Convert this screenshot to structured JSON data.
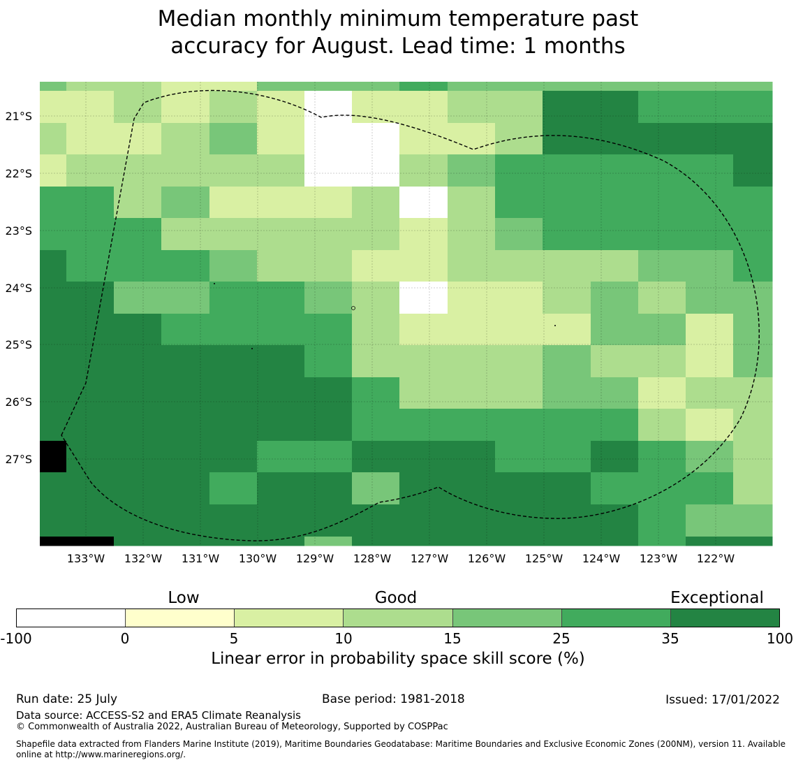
{
  "title": {
    "line1": "Median monthly minimum temperature past",
    "line2": "accuracy for August. Lead time: 1 months"
  },
  "map": {
    "lat_labels": [
      "21°S",
      "22°S",
      "23°S",
      "24°S",
      "25°S",
      "26°S",
      "27°S"
    ],
    "lon_labels": [
      "133°W",
      "132°W",
      "131°W",
      "130°W",
      "129°W",
      "128°W",
      "127°W",
      "126°W",
      "125°W",
      "124°W",
      "123°W",
      "122°W"
    ],
    "boundary": "dashed Exclusive Economic Zone outline",
    "grid_rows": [
      [
        4,
        3,
        3,
        2,
        2,
        4,
        4,
        4,
        5,
        4,
        4,
        4,
        4,
        4,
        4,
        4
      ],
      [
        2,
        2,
        3,
        2,
        3,
        2,
        0,
        2,
        2,
        3,
        3,
        6,
        6,
        5,
        5,
        5
      ],
      [
        3,
        2,
        2,
        3,
        4,
        2,
        0,
        0,
        2,
        2,
        3,
        6,
        6,
        6,
        6,
        6
      ],
      [
        2,
        3,
        3,
        3,
        3,
        3,
        0,
        0,
        3,
        4,
        5,
        5,
        5,
        5,
        5,
        6
      ],
      [
        5,
        5,
        3,
        4,
        2,
        2,
        2,
        3,
        0,
        3,
        5,
        5,
        5,
        5,
        5,
        5
      ],
      [
        5,
        5,
        5,
        3,
        3,
        3,
        3,
        3,
        2,
        3,
        4,
        5,
        5,
        5,
        5,
        5
      ],
      [
        6,
        5,
        5,
        5,
        4,
        3,
        3,
        2,
        2,
        3,
        3,
        3,
        3,
        4,
        4,
        5
      ],
      [
        6,
        6,
        4,
        4,
        5,
        5,
        4,
        3,
        0,
        2,
        2,
        3,
        4,
        3,
        4,
        4
      ],
      [
        6,
        6,
        6,
        5,
        5,
        5,
        5,
        3,
        2,
        2,
        2,
        2,
        4,
        4,
        2,
        4
      ],
      [
        6,
        6,
        6,
        6,
        6,
        6,
        5,
        3,
        3,
        3,
        3,
        4,
        3,
        3,
        2,
        4
      ],
      [
        6,
        6,
        6,
        6,
        6,
        6,
        6,
        5,
        3,
        3,
        3,
        4,
        4,
        2,
        3,
        3
      ],
      [
        6,
        6,
        6,
        6,
        6,
        6,
        6,
        5,
        5,
        5,
        5,
        5,
        5,
        3,
        2,
        3
      ],
      [
        7,
        6,
        6,
        6,
        6,
        5,
        5,
        6,
        6,
        6,
        5,
        5,
        6,
        5,
        4,
        3
      ],
      [
        6,
        6,
        6,
        6,
        5,
        6,
        6,
        4,
        6,
        6,
        6,
        6,
        5,
        5,
        5,
        3
      ],
      [
        6,
        6,
        6,
        6,
        6,
        6,
        6,
        6,
        6,
        6,
        6,
        6,
        6,
        5,
        4,
        4
      ],
      [
        7,
        7,
        6,
        6,
        6,
        6,
        4,
        6,
        6,
        6,
        6,
        6,
        6,
        5,
        6,
        6
      ]
    ]
  },
  "colorbar": {
    "categories": [
      "Low",
      "Good",
      "Exceptional"
    ],
    "ticks": [
      "-100",
      "0",
      "5",
      "10",
      "15",
      "25",
      "35",
      "100"
    ],
    "colors": [
      "#ffffff",
      "#ffffcc",
      "#d9f0a3",
      "#addd8e",
      "#78c679",
      "#41ab5d",
      "#238443"
    ],
    "label": "Linear error in probability space skill score (%)"
  },
  "footer": {
    "run_date": "Run date: 25 July",
    "base_period": "Base period: 1981-2018",
    "issued": "Issued: 17/01/2022",
    "data_source": "Data source: ACCESS-S2 and ERA5 Climate Reanalysis",
    "copyright": "© Commonwealth of Australia 2022, Australian Bureau of Meteorology, Supported by COSPPac",
    "shapefile": "Shapefile data extracted from Flanders Marine Institute (2019), Maritime Boundaries Geodatabase: Maritime Boundaries and Exclusive Economic Zones (200NM), version 11. Available online at http://www.marineregions.org/."
  }
}
